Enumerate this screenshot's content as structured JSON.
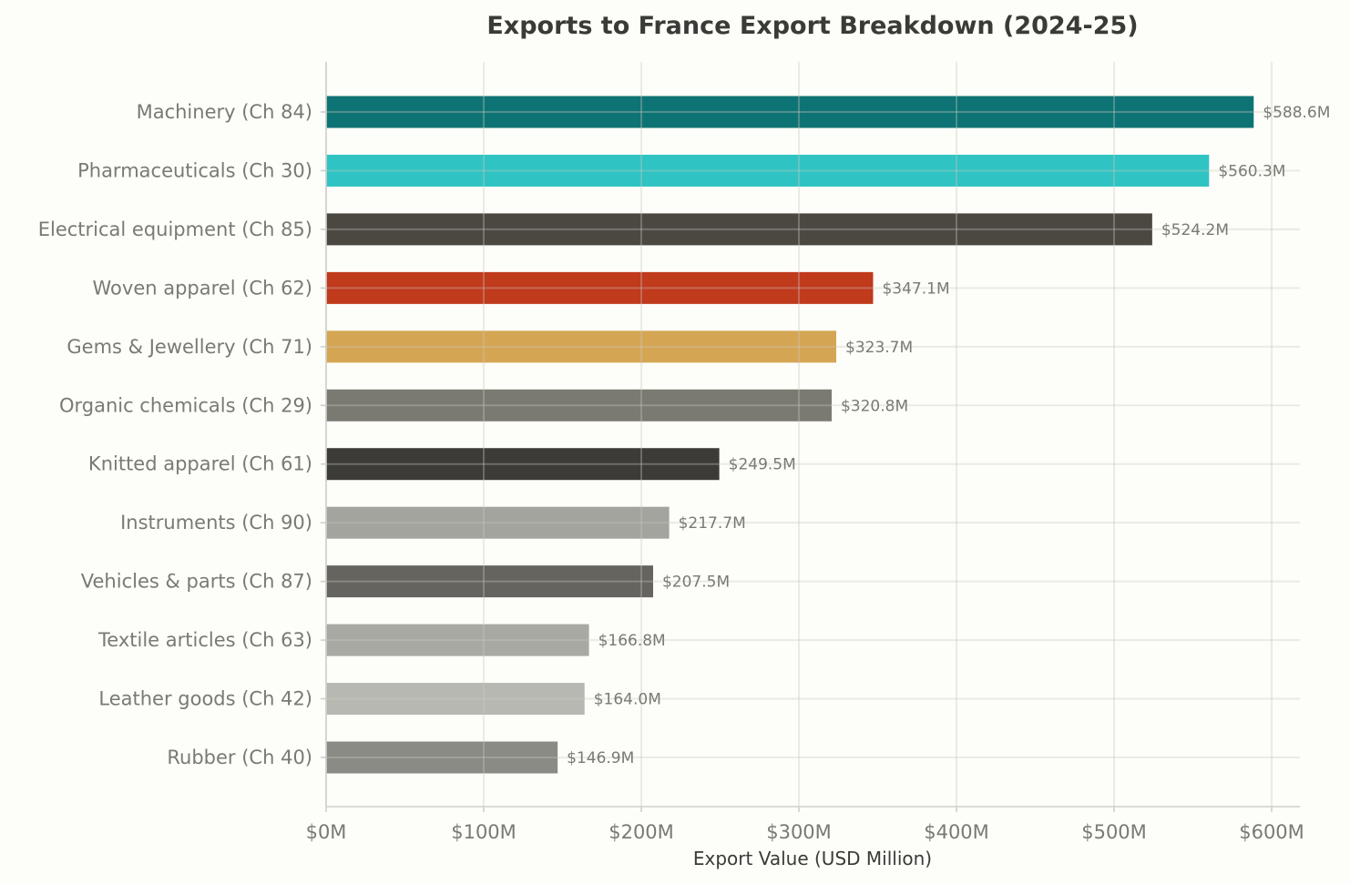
{
  "chart_data": {
    "type": "bar",
    "orientation": "horizontal",
    "title": "Exports to France Export Breakdown (2024-25)",
    "xlabel": "Export Value (USD Million)",
    "ylabel": "",
    "xlim": [
      0,
      618
    ],
    "grid": true,
    "categories": [
      "Machinery (Ch 84)",
      "Pharmaceuticals (Ch 30)",
      "Electrical equipment (Ch 85)",
      "Woven apparel (Ch 62)",
      "Gems & Jewellery (Ch 71)",
      "Organic chemicals (Ch 29)",
      "Knitted apparel (Ch 61)",
      "Instruments (Ch 90)",
      "Vehicles & parts (Ch 87)",
      "Textile articles (Ch 63)",
      "Leather goods (Ch 42)",
      "Rubber (Ch 40)"
    ],
    "values": [
      588.6,
      560.3,
      524.2,
      347.1,
      323.7,
      320.8,
      249.5,
      217.7,
      207.5,
      166.8,
      164.0,
      146.9
    ],
    "data_labels": [
      "$588.6M",
      "$560.3M",
      "$524.2M",
      "$347.1M",
      "$323.7M",
      "$320.8M",
      "$249.5M",
      "$217.7M",
      "$207.5M",
      "$166.8M",
      "$164.0M",
      "$146.9M"
    ],
    "colors": [
      "#0e7374",
      "#2fc4c3",
      "#4b4842",
      "#c03a1c",
      "#d4a654",
      "#7a7a73",
      "#3c3b37",
      "#a4a49e",
      "#65645f",
      "#a9a9a3",
      "#b8b8b2",
      "#8b8b85"
    ],
    "xticks": [
      0,
      100,
      200,
      300,
      400,
      500,
      600
    ],
    "xtick_labels": [
      "$0M",
      "$100M",
      "$200M",
      "$300M",
      "$400M",
      "$500M",
      "$600M"
    ]
  }
}
